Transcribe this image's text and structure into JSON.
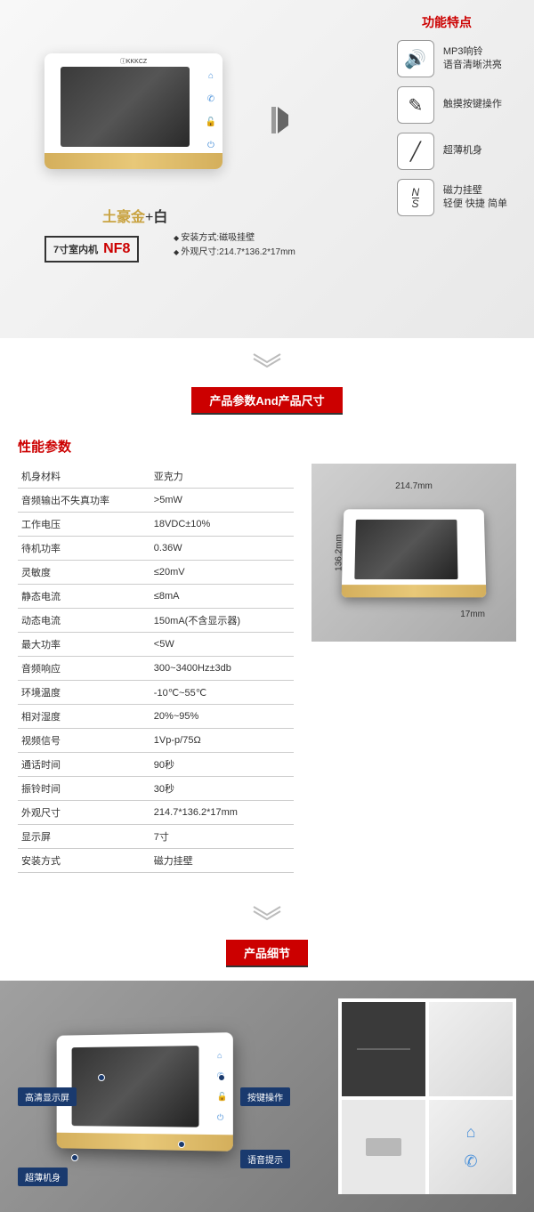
{
  "features": {
    "title": "功能特点",
    "items": [
      {
        "icon": "🔊",
        "line1": "MP3响铃",
        "line2": "语音清晰洪亮"
      },
      {
        "icon": "✎",
        "line1": "触摸按键操作",
        "line2": ""
      },
      {
        "icon": "╱",
        "line1": "超薄机身",
        "line2": ""
      },
      {
        "icon": "N/S",
        "line1": "磁力挂壁",
        "line2": "轻便 快捷 简单"
      }
    ]
  },
  "product": {
    "color_gold": "土豪金",
    "color_plus": "+",
    "color_white": "白",
    "model_prefix": "7寸室内机",
    "model": "NF8",
    "install_method": "安装方式:磁吸挂壁",
    "dimensions": "外观尺寸:214.7*136.2*17mm",
    "brand": "ⓘKKKCZ"
  },
  "section_params": "产品参数And产品尺寸",
  "specs": {
    "title": "性能参数",
    "rows": [
      [
        "机身材料",
        "亚克力"
      ],
      [
        "音频输出不失真功率",
        ">5mW"
      ],
      [
        "工作电压",
        "18VDC±10%"
      ],
      [
        "待机功率",
        "0.36W"
      ],
      [
        "灵敏度",
        "≤20mV"
      ],
      [
        "静态电流",
        "≤8mA"
      ],
      [
        "动态电流",
        "150mA(不含显示器)"
      ],
      [
        "最大功率",
        "<5W"
      ],
      [
        "音频响应",
        "300~3400Hz±3db"
      ],
      [
        "环境温度",
        "-10℃~55℃"
      ],
      [
        "相对湿度",
        "20%~95%"
      ],
      [
        "视频信号",
        "1Vp-p/75Ω"
      ],
      [
        "通话时间",
        "90秒"
      ],
      [
        "振铃时间",
        "30秒"
      ],
      [
        "外观尺寸",
        "214.7*136.2*17mm"
      ],
      [
        "显示屏",
        "7寸"
      ],
      [
        "安装方式",
        "磁力挂壁"
      ]
    ]
  },
  "dims": {
    "width": "214.7mm",
    "height": "136.2mm",
    "depth": "17mm"
  },
  "section_details": "产品细节",
  "callouts": {
    "hd_screen": "高清显示屏",
    "thin_body": "超薄机身",
    "touch_keys": "按键操作",
    "voice": "语音提示"
  },
  "colors": {
    "accent_red": "#c00",
    "gold": "#d4af5c",
    "callout_blue": "#1a3a6e",
    "icon_blue": "#4a90d9"
  }
}
